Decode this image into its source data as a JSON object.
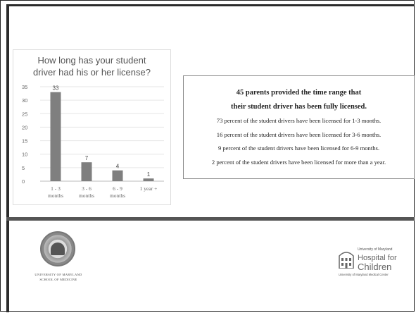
{
  "chart_data": {
    "type": "bar",
    "title": "How long has your student driver had his or her license?",
    "categories": [
      [
        "1 - 3",
        "months"
      ],
      [
        "3 - 6",
        "months"
      ],
      [
        "6 - 9",
        "months"
      ],
      [
        "1 year +"
      ]
    ],
    "values": [
      33,
      7,
      4,
      1
    ],
    "data_labels": [
      "33",
      "7",
      "4",
      "1"
    ],
    "ylim": [
      0,
      35
    ],
    "yticks": [
      "0",
      "5",
      "10",
      "15",
      "20",
      "25",
      "30",
      "35"
    ],
    "grid": true,
    "bar_color": "#7f7f7f"
  },
  "summary": {
    "headline_1": "45 parents provided the time range that",
    "headline_2": "their student driver has been fully licensed.",
    "lines": [
      "73 percent of the student drivers have been licensed for 1-3 months.",
      "16 percent of the student drivers have been licensed for 3-6 months.",
      "9 percent of the student drivers have been licensed for 6-9 months.",
      "2 percent of the student drivers have been licensed for more than a year."
    ]
  },
  "logos": {
    "left_name_1": "UNIVERSITY OF MARYLAND",
    "left_name_2": "SCHOOL OF MEDICINE",
    "right_small_1": "University of Maryland",
    "right_big_1": "Hospital for",
    "right_big_2": "Children",
    "right_tag": "University of Maryland Medical Center"
  }
}
